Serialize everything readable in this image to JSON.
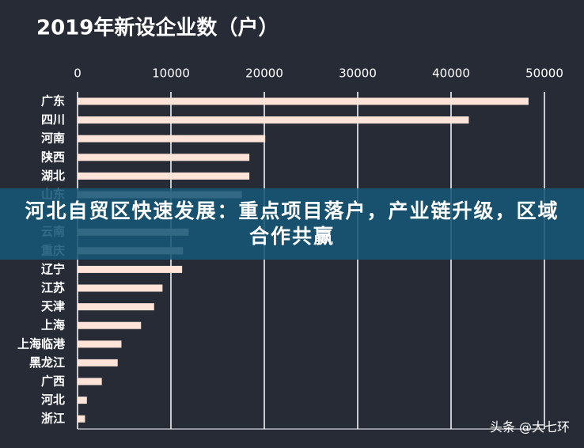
{
  "chart_data": {
    "type": "bar",
    "orientation": "horizontal",
    "title": "2019年新设企业数（户）",
    "categories": [
      "广东",
      "四川",
      "河南",
      "陕西",
      "湖北",
      "山东",
      null,
      "云南",
      "重庆",
      "辽宁",
      "江苏",
      "天津",
      "上海",
      "上海临港",
      "黑龙江",
      "广西",
      "河北",
      "浙江"
    ],
    "values": [
      48300,
      41900,
      20100,
      18400,
      18400,
      17600,
      null,
      11900,
      11300,
      11200,
      9100,
      8200,
      6800,
      4700,
      4300,
      2600,
      1000,
      800
    ],
    "color": "#fde3d8",
    "xlim": [
      0,
      50000
    ],
    "xticks": [
      0,
      10000,
      20000,
      30000,
      40000,
      50000
    ],
    "grid": true
  },
  "banner": "河北自贸区快速发展：重点项目落户，产业链升级，区域合作共赢",
  "watermark": "头条 @大七环"
}
